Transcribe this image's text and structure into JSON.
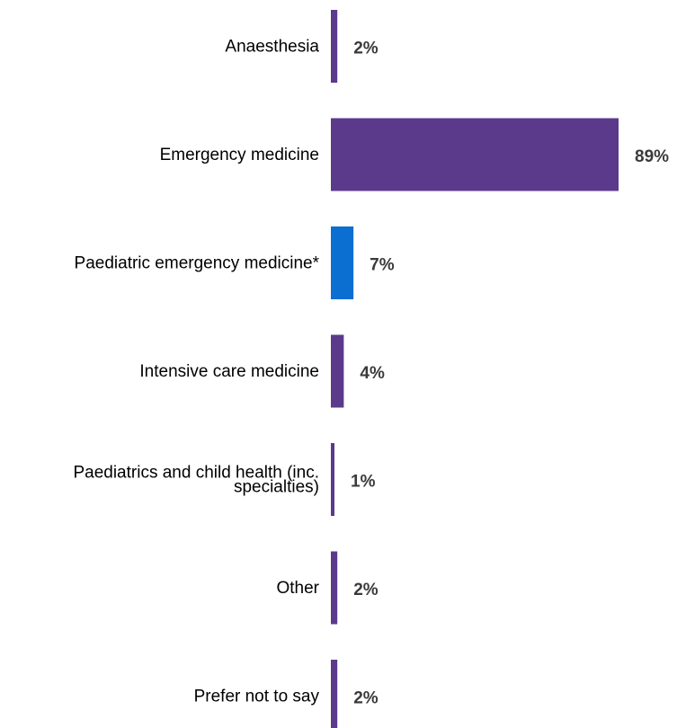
{
  "chart_data": {
    "type": "bar",
    "orientation": "horizontal",
    "categories": [
      "Anaesthesia",
      "Emergency medicine",
      "Paediatric emergency medicine*",
      "Intensive care medicine",
      "Paediatrics and child health (inc. specialties)",
      "Other",
      "Prefer not to say"
    ],
    "category_lines": [
      [
        "Anaesthesia"
      ],
      [
        "Emergency medicine"
      ],
      [
        "Paediatric emergency medicine*"
      ],
      [
        "Intensive care medicine"
      ],
      [
        "Paediatrics and child health (inc.",
        "specialties)"
      ],
      [
        "Other"
      ],
      [
        "Prefer not to say"
      ]
    ],
    "values": [
      2,
      89,
      7,
      4,
      1,
      2,
      2
    ],
    "value_labels": [
      "2%",
      "89%",
      "7%",
      "4%",
      "1%",
      "2%",
      "2%"
    ],
    "bar_colors": [
      "#5b3a8c",
      "#5b3a8c",
      "#0b6fd1",
      "#5b3a8c",
      "#5b3a8c",
      "#5b3a8c",
      "#5b3a8c"
    ],
    "xlim": [
      0,
      89
    ],
    "grid": false,
    "legend": "none",
    "title": "",
    "xlabel": "",
    "ylabel": ""
  }
}
